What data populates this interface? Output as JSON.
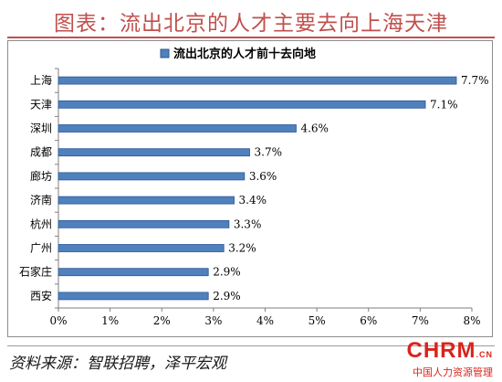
{
  "header": {
    "title": "图表：流出北京的人才主要去向上海天津"
  },
  "footer": {
    "source": "资料来源：智联招聘，泽平宏观",
    "watermark_logo": "CHRM",
    "watermark_logo_suffix": ".CN",
    "watermark_sub": "中国人力资源管理"
  },
  "colors": {
    "bar": "#4f81bd",
    "bar_edge": "#2f5597",
    "title": "#c0504d"
  },
  "chart_data": {
    "type": "bar",
    "orientation": "horizontal",
    "title": "",
    "xlabel": "",
    "ylabel": "",
    "legend": {
      "label": "流出北京的人才前十去向地",
      "placement": "top-center"
    },
    "categories": [
      "上海",
      "天津",
      "深圳",
      "成都",
      "廊坊",
      "济南",
      "杭州",
      "广州",
      "石家庄",
      "西安"
    ],
    "values": [
      7.7,
      7.1,
      4.6,
      3.7,
      3.6,
      3.4,
      3.3,
      3.2,
      2.9,
      2.9
    ],
    "value_labels": [
      "7.7%",
      "7.1%",
      "4.6%",
      "3.7%",
      "3.6%",
      "3.4%",
      "3.3%",
      "3.2%",
      "2.9%",
      "2.9%"
    ],
    "xlim": [
      0,
      8
    ],
    "xticks": [
      "0%",
      "1%",
      "2%",
      "3%",
      "4%",
      "5%",
      "6%",
      "7%",
      "8%"
    ],
    "grid": false
  }
}
